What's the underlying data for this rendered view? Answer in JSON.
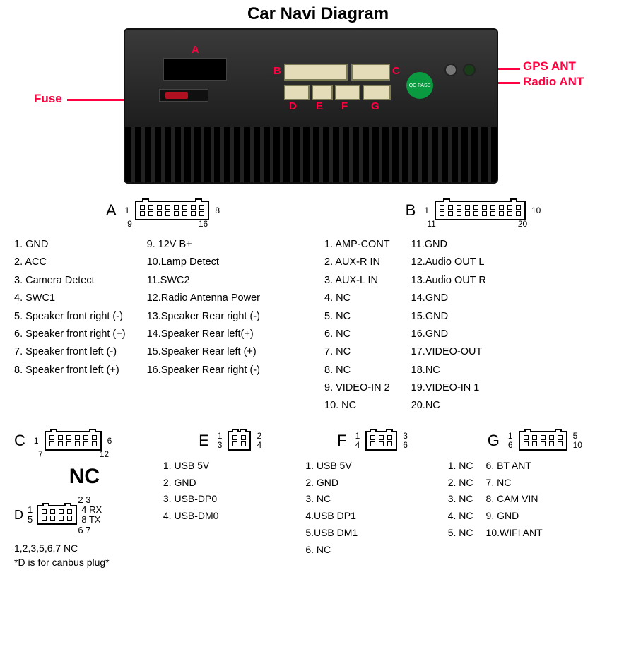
{
  "title": "Car Navi Diagram",
  "photo": {
    "external_labels": {
      "fuse": "Fuse",
      "gps": "GPS ANT",
      "radio": "Radio ANT"
    },
    "internal_letters": [
      "A",
      "B",
      "C",
      "D",
      "E",
      "F",
      "G"
    ],
    "qc_text": "QC PASS",
    "accent_color": "#ff0040",
    "unit_bg": "#2a2a2a"
  },
  "connectors": {
    "A": {
      "rows": 2,
      "cols": 8,
      "corner_nums": {
        "tl": "1",
        "tr": "8",
        "bl": "9",
        "br": "16"
      },
      "pins_left": [
        "1. GND",
        "2. ACC",
        "3. Camera Detect",
        "4. SWC1",
        "5. Speaker front right (-)",
        "6. Speaker front right (+)",
        "7. Speaker front left (-)",
        "8. Speaker front left (+)"
      ],
      "pins_right": [
        "9.  12V B+",
        "10.Lamp Detect",
        "11.SWC2",
        "12.Radio Antenna Power",
        "13.Speaker Rear right (-)",
        "14.Speaker Rear left(+)",
        "15.Speaker Rear left (+)",
        "16.Speaker Rear right (-)"
      ]
    },
    "B": {
      "rows": 2,
      "cols": 10,
      "corner_nums": {
        "tl": "1",
        "tr": "10",
        "bl": "11",
        "br": "20"
      },
      "pins_left": [
        "1.  AMP-CONT",
        "2.  AUX-R IN",
        "3.  AUX-L IN",
        "4.  NC",
        "5.  NC",
        "6.  NC",
        "7.  NC",
        "8.  NC",
        "9. VIDEO-IN 2",
        "10.  NC"
      ],
      "pins_right": [
        "11.GND",
        "12.Audio OUT  L",
        "13.Audio OUT  R",
        "14.GND",
        "15.GND",
        "16.GND",
        "17.VIDEO-OUT",
        "18.NC",
        "19.VIDEO-IN 1",
        "20.NC"
      ]
    },
    "C": {
      "rows": 2,
      "cols": 6,
      "corner_nums": {
        "tl": "1",
        "tr": "6",
        "bl": "7",
        "br": "12"
      },
      "nc_label": "NC"
    },
    "D": {
      "rows": 2,
      "cols": 4,
      "top_nums": "2 3",
      "left_nums": {
        "t": "1",
        "b": "5"
      },
      "right_labels": {
        "t": "4  RX",
        "b": "8  TX"
      },
      "bottom_nums": "6 7",
      "note1": "1,2,3,5,6,7  NC",
      "note2": "*D is for canbus plug*"
    },
    "E": {
      "rows": 2,
      "cols": 2,
      "corner_nums": {
        "tl": "1",
        "tr": "2",
        "bl": "3",
        "br": "4"
      },
      "pins": [
        "1. USB 5V",
        "2. GND",
        "3. USB-DP0",
        "4. USB-DM0"
      ]
    },
    "F": {
      "rows": 2,
      "cols": 3,
      "corner_nums": {
        "tl": "1",
        "tr": "3",
        "bl": "4",
        "br": "6"
      },
      "pins": [
        "1. USB 5V",
        "2. GND",
        "3. NC",
        "4.USB DP1",
        "5.USB DM1",
        "6. NC"
      ]
    },
    "G": {
      "rows": 2,
      "cols": 5,
      "corner_nums": {
        "tl": "1",
        "tr": "5",
        "bl": "6",
        "br": "10"
      },
      "pins_left": [
        "1. NC",
        "2. NC",
        "3. NC",
        "4. NC",
        "5. NC"
      ],
      "pins_right": [
        "6.  BT ANT",
        "7.  NC",
        "8.  CAM VIN",
        "9.  GND",
        "10.WIFI ANT"
      ]
    }
  }
}
